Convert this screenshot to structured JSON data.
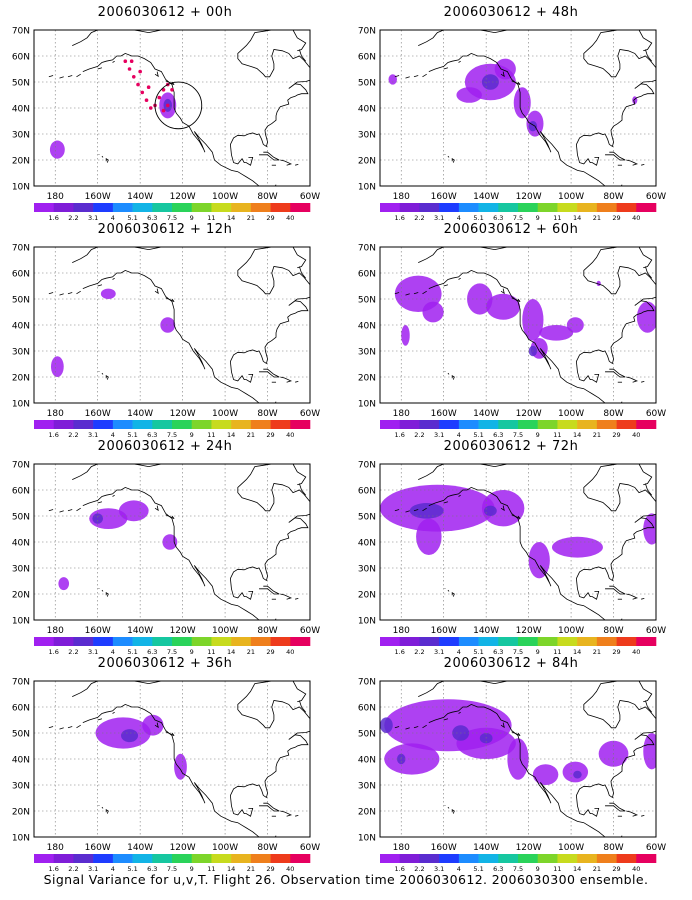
{
  "caption": "Signal Variance for u,v,T. Flight 26. Observation time 2006030612. 2006030300 ensemble.",
  "colorbar": {
    "labels": [
      "1.6",
      "2.2",
      "3.1",
      "4",
      "5.1",
      "6.3",
      "7.5",
      "9",
      "11",
      "14",
      "21",
      "29",
      "40"
    ],
    "colors": [
      "#a020f0",
      "#7f1dd8",
      "#5a2ccf",
      "#1e3cff",
      "#1d8cff",
      "#12b4e6",
      "#16c7a0",
      "#2ad35a",
      "#7dd52a",
      "#c7db1e",
      "#e8b41f",
      "#ef7f1c",
      "#ee3b1c",
      "#e6005f"
    ]
  },
  "chart_data": [
    {
      "type": "heatmap",
      "title": "2006030612 + 00h",
      "lead_hours": 0,
      "xticks": [
        "180",
        "160W",
        "140W",
        "120W",
        "100W",
        "80W",
        "60W"
      ],
      "yticks": [
        "10N",
        "20N",
        "30N",
        "40N",
        "50N",
        "60N",
        "70N"
      ],
      "xlim": [
        -190,
        -60
      ],
      "ylim": [
        10,
        70
      ],
      "blobs": [
        {
          "lon": -179,
          "lat": 24,
          "rx": 3.5,
          "ry": 3.5,
          "level": 1
        },
        {
          "lon": -127,
          "lat": 41,
          "rx": 4,
          "ry": 5,
          "level": 1
        },
        {
          "lon": -127,
          "lat": 41,
          "rx": 2,
          "ry": 2.5,
          "level": 2
        }
      ],
      "observation_path": [
        [
          -147,
          58
        ],
        [
          -145,
          55
        ],
        [
          -143,
          52
        ],
        [
          -141,
          49
        ],
        [
          -139,
          46
        ],
        [
          -137,
          43
        ],
        [
          -135,
          40
        ],
        [
          -131,
          44
        ],
        [
          -129,
          47
        ],
        [
          -127,
          49
        ],
        [
          -125,
          47
        ],
        [
          -127,
          41
        ],
        [
          -129,
          39
        ],
        [
          -133,
          41
        ],
        [
          -136,
          48
        ],
        [
          -140,
          54
        ],
        [
          -144,
          58
        ]
      ],
      "circle": {
        "lon": -122,
        "lat": 41,
        "r": 11
      }
    },
    {
      "type": "heatmap",
      "title": "2006030612 + 48h",
      "lead_hours": 48,
      "xticks": [
        "180",
        "160W",
        "140W",
        "120W",
        "100W",
        "80W",
        "60W"
      ],
      "yticks": [
        "10N",
        "20N",
        "30N",
        "40N",
        "50N",
        "60N",
        "70N"
      ],
      "xlim": [
        -190,
        -60
      ],
      "ylim": [
        10,
        70
      ],
      "blobs": [
        {
          "lon": -184,
          "lat": 51,
          "rx": 2,
          "ry": 2,
          "level": 1
        },
        {
          "lon": -138,
          "lat": 50,
          "rx": 12,
          "ry": 7,
          "level": 1
        },
        {
          "lon": -148,
          "lat": 45,
          "rx": 6,
          "ry": 3,
          "level": 1
        },
        {
          "lon": -131,
          "lat": 55,
          "rx": 5,
          "ry": 4,
          "level": 1
        },
        {
          "lon": -123,
          "lat": 42,
          "rx": 4,
          "ry": 6,
          "level": 1
        },
        {
          "lon": -117,
          "lat": 34,
          "rx": 4,
          "ry": 5,
          "level": 1
        },
        {
          "lon": -138,
          "lat": 50,
          "rx": 4,
          "ry": 3,
          "level": 2
        },
        {
          "lon": -118,
          "lat": 33,
          "rx": 2,
          "ry": 2,
          "level": 2
        },
        {
          "lon": -70,
          "lat": 43,
          "rx": 1.2,
          "ry": 1.5,
          "level": 1
        }
      ]
    },
    {
      "type": "heatmap",
      "title": "2006030612 + 12h",
      "lead_hours": 12,
      "xticks": [
        "180",
        "160W",
        "140W",
        "120W",
        "100W",
        "80W",
        "60W"
      ],
      "yticks": [
        "10N",
        "20N",
        "30N",
        "40N",
        "50N",
        "60N",
        "70N"
      ],
      "xlim": [
        -190,
        -60
      ],
      "ylim": [
        10,
        70
      ],
      "blobs": [
        {
          "lon": -179,
          "lat": 24,
          "rx": 3,
          "ry": 4,
          "level": 1
        },
        {
          "lon": -155,
          "lat": 52,
          "rx": 3.5,
          "ry": 2,
          "level": 1
        },
        {
          "lon": -127,
          "lat": 40,
          "rx": 3.5,
          "ry": 3,
          "level": 1
        }
      ]
    },
    {
      "type": "heatmap",
      "title": "2006030612 + 60h",
      "lead_hours": 60,
      "xticks": [
        "180",
        "160W",
        "140W",
        "120W",
        "100W",
        "80W",
        "60W"
      ],
      "yticks": [
        "10N",
        "20N",
        "30N",
        "40N",
        "50N",
        "60N",
        "70N"
      ],
      "xlim": [
        -190,
        -60
      ],
      "ylim": [
        10,
        70
      ],
      "blobs": [
        {
          "lon": -172,
          "lat": 52,
          "rx": 11,
          "ry": 7,
          "level": 1
        },
        {
          "lon": -165,
          "lat": 45,
          "rx": 5,
          "ry": 4,
          "level": 1
        },
        {
          "lon": -178,
          "lat": 36,
          "rx": 2,
          "ry": 4,
          "level": 1
        },
        {
          "lon": -143,
          "lat": 50,
          "rx": 6,
          "ry": 6,
          "level": 1
        },
        {
          "lon": -132,
          "lat": 47,
          "rx": 8,
          "ry": 5,
          "level": 1
        },
        {
          "lon": -118,
          "lat": 42,
          "rx": 5,
          "ry": 8,
          "level": 1
        },
        {
          "lon": -115,
          "lat": 31,
          "rx": 4,
          "ry": 4,
          "level": 1
        },
        {
          "lon": -107,
          "lat": 37,
          "rx": 8,
          "ry": 3,
          "level": 1
        },
        {
          "lon": -98,
          "lat": 40,
          "rx": 4,
          "ry": 3,
          "level": 1
        },
        {
          "lon": -87,
          "lat": 56,
          "rx": 1,
          "ry": 1,
          "level": 1
        },
        {
          "lon": -64,
          "lat": 43,
          "rx": 5,
          "ry": 6,
          "level": 1
        },
        {
          "lon": -118,
          "lat": 30,
          "rx": 2,
          "ry": 2,
          "level": 2
        }
      ]
    },
    {
      "type": "heatmap",
      "title": "2006030612 + 24h",
      "lead_hours": 24,
      "xticks": [
        "180",
        "160W",
        "140W",
        "120W",
        "100W",
        "80W",
        "60W"
      ],
      "yticks": [
        "10N",
        "20N",
        "30N",
        "40N",
        "50N",
        "60N",
        "70N"
      ],
      "xlim": [
        -190,
        -60
      ],
      "ylim": [
        10,
        70
      ],
      "blobs": [
        {
          "lon": -176,
          "lat": 24,
          "rx": 2.5,
          "ry": 2.5,
          "level": 1
        },
        {
          "lon": -155,
          "lat": 49,
          "rx": 9,
          "ry": 4,
          "level": 1
        },
        {
          "lon": -143,
          "lat": 52,
          "rx": 7,
          "ry": 4,
          "level": 1
        },
        {
          "lon": -126,
          "lat": 40,
          "rx": 3.5,
          "ry": 3,
          "level": 1
        },
        {
          "lon": -160,
          "lat": 49,
          "rx": 2.5,
          "ry": 2,
          "level": 2
        }
      ]
    },
    {
      "type": "heatmap",
      "title": "2006030612 + 72h",
      "lead_hours": 72,
      "xticks": [
        "180",
        "160W",
        "140W",
        "120W",
        "100W",
        "80W",
        "60W"
      ],
      "yticks": [
        "10N",
        "20N",
        "30N",
        "40N",
        "50N",
        "60N",
        "70N"
      ],
      "xlim": [
        -190,
        -60
      ],
      "ylim": [
        10,
        70
      ],
      "blobs": [
        {
          "lon": -163,
          "lat": 53,
          "rx": 27,
          "ry": 9,
          "level": 1
        },
        {
          "lon": -132,
          "lat": 53,
          "rx": 10,
          "ry": 7,
          "level": 1
        },
        {
          "lon": -167,
          "lat": 42,
          "rx": 6,
          "ry": 7,
          "level": 1
        },
        {
          "lon": -115,
          "lat": 33,
          "rx": 5,
          "ry": 7,
          "level": 1
        },
        {
          "lon": -97,
          "lat": 38,
          "rx": 12,
          "ry": 4,
          "level": 1
        },
        {
          "lon": -62,
          "lat": 45,
          "rx": 4,
          "ry": 6,
          "level": 1
        },
        {
          "lon": -168,
          "lat": 52,
          "rx": 8,
          "ry": 3,
          "level": 2
        },
        {
          "lon": -138,
          "lat": 52,
          "rx": 3,
          "ry": 2,
          "level": 2
        }
      ]
    },
    {
      "type": "heatmap",
      "title": "2006030612 + 36h",
      "lead_hours": 36,
      "xticks": [
        "180",
        "160W",
        "140W",
        "120W",
        "100W",
        "80W",
        "60W"
      ],
      "yticks": [
        "10N",
        "20N",
        "30N",
        "40N",
        "50N",
        "60N",
        "70N"
      ],
      "xlim": [
        -190,
        -60
      ],
      "ylim": [
        10,
        70
      ],
      "blobs": [
        {
          "lon": -148,
          "lat": 50,
          "rx": 13,
          "ry": 6,
          "level": 1
        },
        {
          "lon": -134,
          "lat": 53,
          "rx": 5,
          "ry": 4,
          "level": 1
        },
        {
          "lon": -121,
          "lat": 37,
          "rx": 3,
          "ry": 5,
          "level": 1
        },
        {
          "lon": -145,
          "lat": 49,
          "rx": 4,
          "ry": 2.5,
          "level": 2
        }
      ]
    },
    {
      "type": "heatmap",
      "title": "2006030612 + 84h",
      "lead_hours": 84,
      "xticks": [
        "180",
        "160W",
        "140W",
        "120W",
        "100W",
        "80W",
        "60W"
      ],
      "yticks": [
        "10N",
        "20N",
        "30N",
        "40N",
        "50N",
        "60N",
        "70N"
      ],
      "xlim": [
        -190,
        -60
      ],
      "ylim": [
        10,
        70
      ],
      "blobs": [
        {
          "lon": -158,
          "lat": 53,
          "rx": 30,
          "ry": 10,
          "level": 1
        },
        {
          "lon": -140,
          "lat": 46,
          "rx": 14,
          "ry": 6,
          "level": 1
        },
        {
          "lon": -175,
          "lat": 40,
          "rx": 13,
          "ry": 6,
          "level": 1
        },
        {
          "lon": -125,
          "lat": 40,
          "rx": 5,
          "ry": 8,
          "level": 1
        },
        {
          "lon": -112,
          "lat": 34,
          "rx": 6,
          "ry": 4,
          "level": 1
        },
        {
          "lon": -98,
          "lat": 35,
          "rx": 6,
          "ry": 4,
          "level": 1
        },
        {
          "lon": -80,
          "lat": 42,
          "rx": 7,
          "ry": 5,
          "level": 1
        },
        {
          "lon": -62,
          "lat": 43,
          "rx": 4,
          "ry": 7,
          "level": 1
        },
        {
          "lon": -187,
          "lat": 53,
          "rx": 3,
          "ry": 3,
          "level": 2
        },
        {
          "lon": -152,
          "lat": 50,
          "rx": 4,
          "ry": 3,
          "level": 2
        },
        {
          "lon": -140,
          "lat": 48,
          "rx": 3,
          "ry": 2,
          "level": 2
        },
        {
          "lon": -180,
          "lat": 40,
          "rx": 2,
          "ry": 2,
          "level": 2
        },
        {
          "lon": -97,
          "lat": 34,
          "rx": 2,
          "ry": 1.5,
          "level": 2
        }
      ]
    }
  ]
}
